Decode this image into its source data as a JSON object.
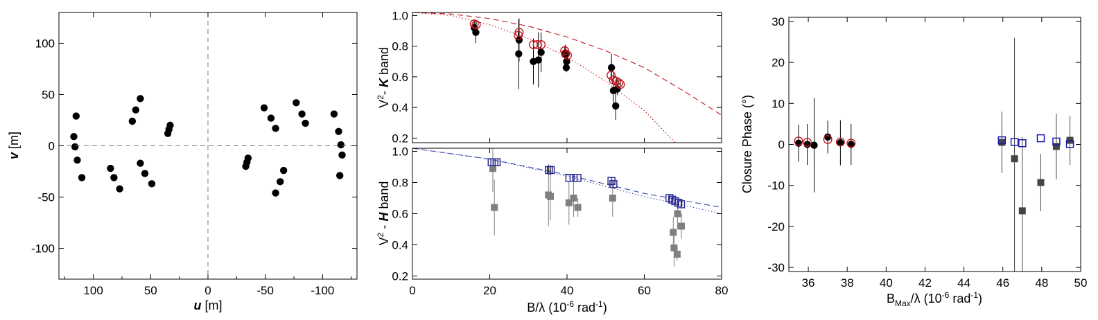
{
  "chart_data": [
    {
      "type": "scatter",
      "panel": "uv-coverage",
      "xlabel_bold": "u",
      "xlabel_rest": " [m]",
      "ylabel_bold": "v",
      "ylabel_rest": " [m]",
      "xlim": [
        130,
        -130
      ],
      "ylim": [
        -130,
        130
      ],
      "xticks": [
        100,
        50,
        0,
        -50,
        -100
      ],
      "xtick_labels": [
        "100",
        "50",
        "0",
        "-50",
        "-100"
      ],
      "yticks": [
        100,
        50,
        0,
        -50,
        -100
      ],
      "ytick_labels": [
        "100",
        "50",
        "0",
        "-50",
        "-100"
      ],
      "zero_lines": "dashed",
      "series": [
        {
          "color": "#000000",
          "marker": "filled-circle",
          "points": [
            [
              115,
              29
            ],
            [
              117,
              9
            ],
            [
              116,
              -1
            ],
            [
              114,
              -14
            ],
            [
              110,
              -31
            ],
            [
              85,
              -22
            ],
            [
              82,
              -31
            ],
            [
              77,
              -42
            ],
            [
              66,
              24
            ],
            [
              63,
              35
            ],
            [
              59,
              46
            ],
            [
              59,
              -17
            ],
            [
              55,
              -27
            ],
            [
              49,
              -37
            ],
            [
              33,
              20
            ],
            [
              34,
              16
            ],
            [
              35,
              12
            ],
            [
              -33,
              -20
            ],
            [
              -34,
              -16
            ],
            [
              -35,
              -12
            ],
            [
              -49,
              37
            ],
            [
              -55,
              27
            ],
            [
              -59,
              17
            ],
            [
              -59,
              -46
            ],
            [
              -63,
              -35
            ],
            [
              -66,
              -24
            ],
            [
              -77,
              42
            ],
            [
              -82,
              31
            ],
            [
              -85,
              22
            ],
            [
              -110,
              31
            ],
            [
              -114,
              14
            ],
            [
              -116,
              1
            ],
            [
              -117,
              -9
            ],
            [
              -115,
              -29
            ]
          ]
        }
      ]
    },
    {
      "type": "scatter",
      "panel": "v2-k-band",
      "ylabel_parts": [
        "V",
        "2",
        "- ",
        "K",
        " band"
      ],
      "xlim": [
        0,
        80
      ],
      "ylim": [
        0.17,
        1.02
      ],
      "yticks": [
        0.2,
        0.4,
        0.6,
        0.8,
        1.0
      ],
      "ytick_labels": [
        "0.2",
        "0.4",
        "0.6",
        "0.8",
        "1.0"
      ],
      "series": [
        {
          "marker": "filled-circle",
          "color": "#000000",
          "points": [
            [
              16,
              0.92
            ],
            [
              16.4,
              0.89
            ],
            [
              27.5,
              0.75
            ],
            [
              27.6,
              0.84
            ],
            [
              31.3,
              0.7
            ],
            [
              32.6,
              0.71
            ],
            [
              33.3,
              0.76
            ],
            [
              39.6,
              0.75
            ],
            [
              39.8,
              0.66
            ],
            [
              39.9,
              0.7
            ],
            [
              51.5,
              0.66
            ],
            [
              52.0,
              0.51
            ],
            [
              52.6,
              0.41
            ],
            [
              53.0,
              0.52
            ]
          ],
          "errors": [
            0.04,
            0.07,
            0.23,
            0.14,
            0.15,
            0.18,
            0.13,
            0.06,
            0.03,
            0.04,
            0.09,
            0.12,
            0.09,
            0.04
          ]
        },
        {
          "marker": "open-circle",
          "color": "#c01820",
          "points": [
            [
              16,
              0.945
            ],
            [
              16.5,
              0.94
            ],
            [
              27.4,
              0.87
            ],
            [
              27.6,
              0.89
            ],
            [
              31.3,
              0.81
            ],
            [
              32.3,
              0.81
            ],
            [
              33.3,
              0.81
            ],
            [
              39.4,
              0.77
            ],
            [
              39.6,
              0.75
            ],
            [
              40.1,
              0.74
            ],
            [
              51.4,
              0.61
            ],
            [
              52.0,
              0.58
            ],
            [
              52.8,
              0.57
            ],
            [
              53.4,
              0.56
            ],
            [
              53.8,
              0.55
            ]
          ],
          "errors": [
            0.03,
            0.03,
            0.03,
            0.03,
            0,
            0,
            0,
            0.03,
            0.03,
            0.02,
            0.03,
            0.02,
            0.02,
            0.01,
            0.01
          ]
        }
      ],
      "curves": [
        {
          "style": "dashed",
          "color": "#c01820",
          "points": [
            [
              0,
              1.02
            ],
            [
              10,
              1.01
            ],
            [
              20,
              0.98
            ],
            [
              30,
              0.93
            ],
            [
              40,
              0.86
            ],
            [
              50,
              0.77
            ],
            [
              60,
              0.66
            ],
            [
              70,
              0.51
            ],
            [
              80,
              0.35
            ]
          ]
        },
        {
          "style": "dotted",
          "color": "#c01820",
          "points": [
            [
              0,
              1.02
            ],
            [
              10,
              1.0
            ],
            [
              20,
              0.94
            ],
            [
              30,
              0.85
            ],
            [
              40,
              0.73
            ],
            [
              50,
              0.57
            ],
            [
              60,
              0.38
            ],
            [
              68,
              0.17
            ]
          ]
        }
      ]
    },
    {
      "type": "scatter",
      "panel": "v2-h-band",
      "ylabel_parts": [
        "V",
        "2",
        " - ",
        "H",
        " band"
      ],
      "xlabel_main": "B/λ (10",
      "xlabel_sup": "-6",
      "xlabel_tail": " rad",
      "xlabel_sup2": "-1",
      "xlabel_end": ")",
      "xlim": [
        0,
        80
      ],
      "ylim": [
        0.18,
        1.02
      ],
      "xticks": [
        0,
        20,
        40,
        60,
        80
      ],
      "xtick_labels": [
        "0",
        "20",
        "40",
        "60",
        "80"
      ],
      "yticks": [
        0.2,
        0.4,
        0.6,
        0.8,
        1.0
      ],
      "ytick_labels": [
        "0.2",
        "0.4",
        "0.6",
        "0.8",
        "1.0"
      ],
      "series": [
        {
          "marker": "filled-square",
          "color": "#7f7f7f",
          "points": [
            [
              20.8,
              0.89
            ],
            [
              21.2,
              0.64
            ],
            [
              35.2,
              0.72
            ],
            [
              35.7,
              0.71
            ],
            [
              40.5,
              0.67
            ],
            [
              41.7,
              0.7
            ],
            [
              42.8,
              0.64
            ],
            [
              51.8,
              0.7
            ],
            [
              67.5,
              0.48
            ],
            [
              67.7,
              0.38
            ],
            [
              68.5,
              0.34
            ],
            [
              68.6,
              0.6
            ],
            [
              69.6,
              0.52
            ]
          ],
          "errors": [
            0.15,
            0.18,
            0.2,
            0.15,
            0.14,
            0.12,
            0.06,
            0.12,
            0.1,
            0.12,
            0.04,
            0.1,
            0.08
          ]
        },
        {
          "marker": "open-square",
          "color": "#2c2c96",
          "points": [
            [
              20.5,
              0.93
            ],
            [
              21.2,
              0.93
            ],
            [
              21.8,
              0.93
            ],
            [
              35.3,
              0.88
            ],
            [
              35.8,
              0.88
            ],
            [
              40.6,
              0.83
            ],
            [
              41.7,
              0.83
            ],
            [
              42.7,
              0.83
            ],
            [
              51.5,
              0.81
            ],
            [
              52.0,
              0.79
            ],
            [
              66.5,
              0.7
            ],
            [
              67.2,
              0.69
            ],
            [
              68.0,
              0.68
            ],
            [
              68.8,
              0.67
            ],
            [
              69.5,
              0.66
            ]
          ],
          "errors": [
            0,
            0,
            0,
            0.03,
            0.03,
            0,
            0,
            0,
            0.02,
            0.02,
            0.02,
            0.02,
            0.02,
            0.02,
            0.02
          ]
        }
      ],
      "curves": [
        {
          "style": "dashed",
          "color": "#3848a8",
          "points": [
            [
              0,
              1.02
            ],
            [
              20,
              0.95
            ],
            [
              40,
              0.85
            ],
            [
              60,
              0.73
            ],
            [
              80,
              0.64
            ]
          ]
        },
        {
          "style": "dotted",
          "color": "#3848a8",
          "points": [
            [
              0,
              1.02
            ],
            [
              20,
              0.95
            ],
            [
              40,
              0.84
            ],
            [
              60,
              0.71
            ],
            [
              80,
              0.6
            ]
          ]
        }
      ]
    },
    {
      "type": "scatter",
      "panel": "closure-phase",
      "ylabel": "Closure Phase (°)",
      "xlabel_main": "B",
      "xlabel_sub": "Max",
      "xlabel_mid": "/λ (10",
      "xlabel_sup": "-6",
      "xlabel_tail": " rad",
      "xlabel_sup2": "-1",
      "xlabel_end": ")",
      "xlim": [
        35,
        50
      ],
      "ylim": [
        -31,
        31
      ],
      "xticks": [
        36,
        38,
        40,
        42,
        44,
        46,
        48,
        50
      ],
      "xtick_labels": [
        "36",
        "38",
        "40",
        "42",
        "44",
        "46",
        "48",
        "50"
      ],
      "yticks": [
        30,
        20,
        10,
        0,
        -10,
        -20,
        -30
      ],
      "ytick_labels": [
        "30",
        "20",
        "10",
        "0",
        "-10",
        "-20",
        "-30"
      ],
      "series": [
        {
          "marker": "filled-circle",
          "color": "#000000",
          "points": [
            [
              35.5,
              0.3
            ],
            [
              35.95,
              0
            ],
            [
              36.3,
              -0.2
            ],
            [
              37.0,
              1.8
            ],
            [
              37.65,
              0.4
            ],
            [
              38.2,
              0
            ]
          ],
          "errors": [
            4.5,
            5,
            11.5,
            4,
            5.5,
            5
          ]
        },
        {
          "marker": "open-circle",
          "color": "#c01820",
          "points": [
            [
              35.5,
              0.8
            ],
            [
              35.95,
              0.5
            ],
            [
              37.0,
              1.2
            ],
            [
              37.65,
              0.6
            ],
            [
              38.2,
              0.3
            ]
          ],
          "errors": [
            0,
            0,
            0,
            0,
            0
          ]
        },
        {
          "marker": "filled-square",
          "color": "#444444",
          "points": [
            [
              45.95,
              0.5
            ],
            [
              46.6,
              -3.5
            ],
            [
              47.0,
              -16.2
            ],
            [
              47.95,
              -9.3
            ],
            [
              48.75,
              -0.5
            ],
            [
              49.45,
              1
            ]
          ],
          "errors": [
            7.5,
            29.5,
            18,
            7,
            8,
            6
          ]
        },
        {
          "marker": "open-square",
          "color": "#1a1aaa",
          "points": [
            [
              45.95,
              1
            ],
            [
              46.6,
              0.6
            ],
            [
              47.0,
              0.3
            ],
            [
              47.95,
              1.5
            ],
            [
              48.75,
              0.7
            ],
            [
              49.45,
              0.1
            ]
          ],
          "errors": [
            0,
            0,
            0,
            0,
            0,
            0
          ]
        }
      ]
    }
  ]
}
